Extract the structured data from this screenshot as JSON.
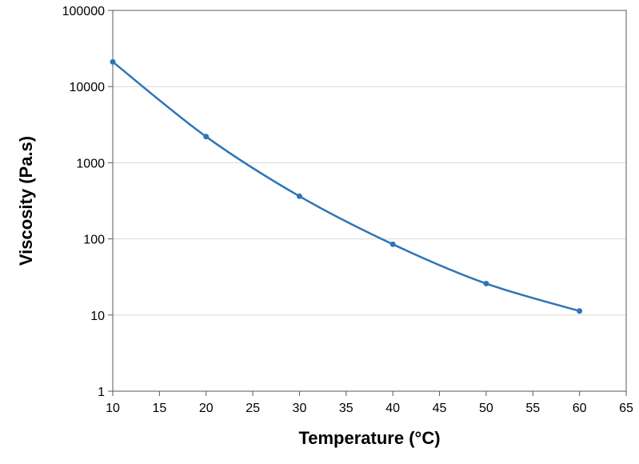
{
  "chart_data": {
    "type": "line",
    "title": "",
    "xlabel": "Temperature (°C)",
    "ylabel": "Viscosity (Pa.s)",
    "xlim": [
      10,
      65
    ],
    "ylim": [
      1,
      100000
    ],
    "yscale": "log",
    "x_ticks": [
      "10",
      "15",
      "20",
      "25",
      "30",
      "35",
      "40",
      "45",
      "50",
      "55",
      "60",
      "65"
    ],
    "y_ticks": [
      "1",
      "10",
      "100",
      "1000",
      "10000",
      "100000"
    ],
    "grid": "horizontal",
    "smooth": true,
    "markers": true,
    "color": "#2e75b6",
    "series": [
      {
        "x": [
          10,
          20,
          30,
          40,
          50,
          60
        ],
        "values": [
          21100,
          2200,
          363,
          85,
          25.9,
          11.3
        ]
      }
    ]
  }
}
